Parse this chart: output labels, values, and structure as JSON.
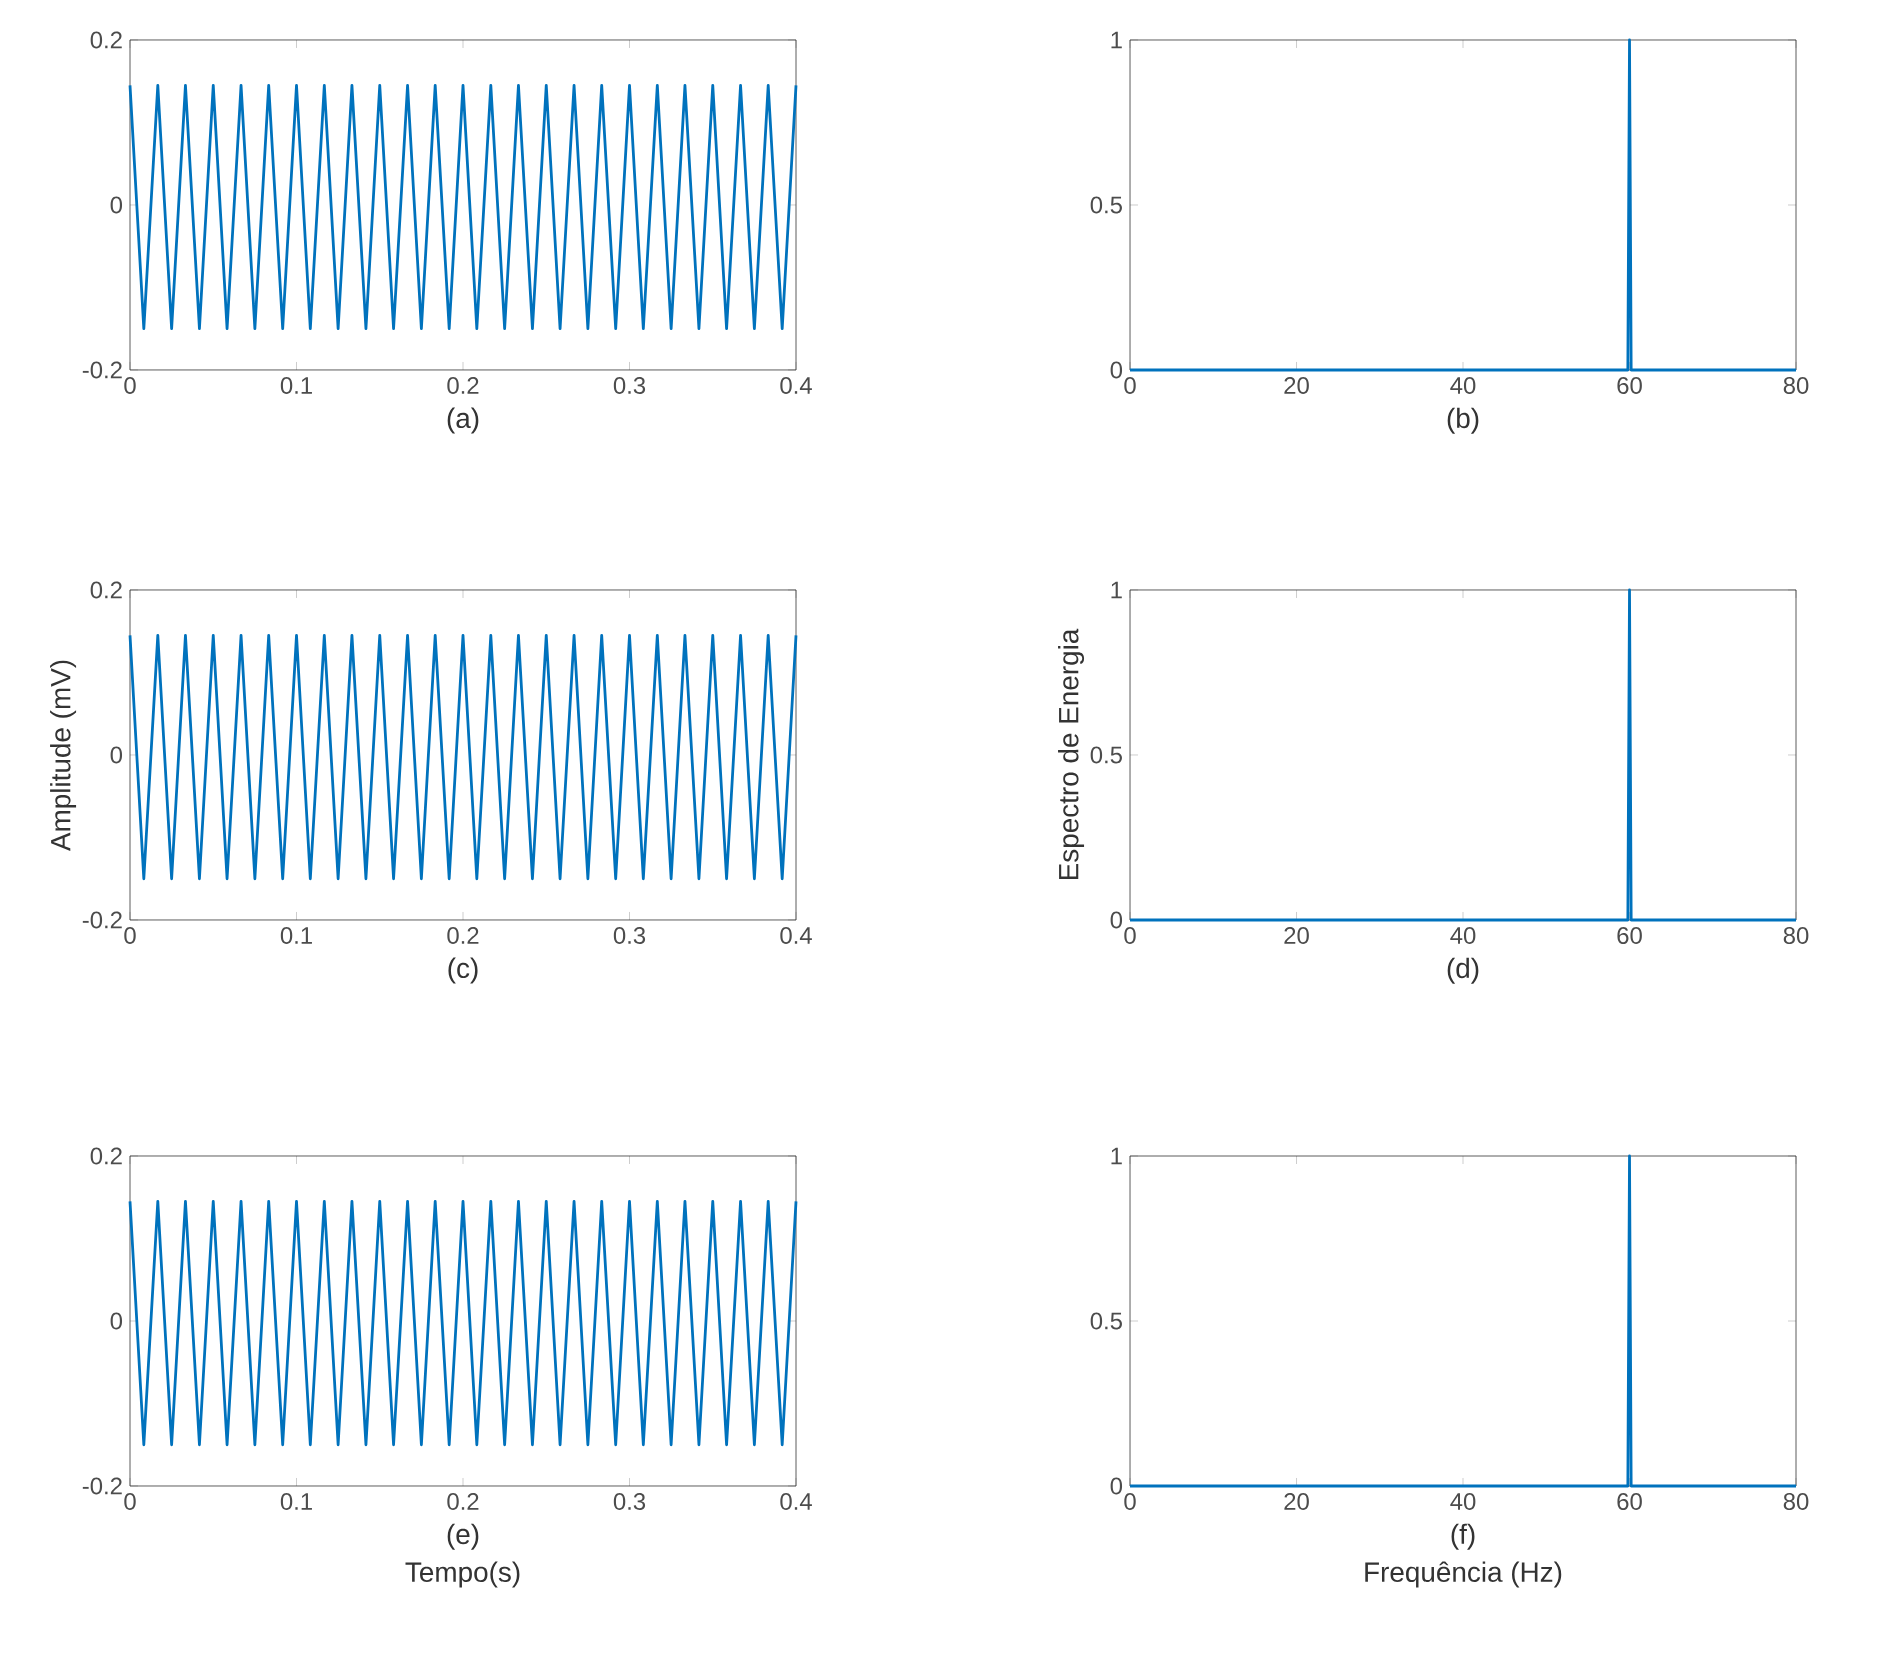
{
  "chart_data": [
    {
      "type": "line",
      "color": "#0072bd",
      "annotations": [
        "(a)"
      ],
      "xlim": [
        0,
        0.4
      ],
      "ylim": [
        -0.2,
        0.2
      ],
      "xticks": [
        0,
        0.1,
        0.2,
        0.3,
        0.4
      ],
      "yticks": [
        -0.2,
        0,
        0.2
      ],
      "x": [
        0,
        0.0083,
        0.0167,
        0.025,
        0.0333,
        0.0417,
        0.05,
        0.0583,
        0.0667,
        0.075,
        0.0833,
        0.0917,
        0.1,
        0.1083,
        0.1167,
        0.125,
        0.1333,
        0.1417,
        0.15,
        0.1583,
        0.1667,
        0.175,
        0.1833,
        0.1917,
        0.2,
        0.2083,
        0.2167,
        0.225,
        0.2333,
        0.2417,
        0.25,
        0.2583,
        0.2667,
        0.275,
        0.2833,
        0.2917,
        0.3,
        0.3083,
        0.3167,
        0.325,
        0.3333,
        0.3417,
        0.35,
        0.3583,
        0.3667,
        0.375,
        0.3833,
        0.3917,
        0.4
      ],
      "values": [
        0.145,
        -0.15,
        0.145,
        -0.15,
        0.145,
        -0.15,
        0.145,
        -0.15,
        0.145,
        -0.15,
        0.145,
        -0.15,
        0.145,
        -0.15,
        0.145,
        -0.15,
        0.145,
        -0.15,
        0.145,
        -0.15,
        0.145,
        -0.15,
        0.145,
        -0.15,
        0.145,
        -0.15,
        0.145,
        -0.15,
        0.145,
        -0.15,
        0.145,
        -0.15,
        0.145,
        -0.15,
        0.145,
        -0.15,
        0.145,
        -0.15,
        0.145,
        -0.15,
        0.145,
        -0.15,
        0.145,
        -0.15,
        0.145,
        -0.15,
        0.145,
        -0.15,
        0.145
      ]
    },
    {
      "type": "line",
      "color": "#0072bd",
      "annotations": [
        "(b)"
      ],
      "xlim": [
        0,
        80
      ],
      "ylim": [
        0,
        1
      ],
      "xticks": [
        0,
        20,
        40,
        60,
        80
      ],
      "yticks": [
        0,
        0.5,
        1
      ],
      "x": [
        0,
        59.8,
        60,
        60.2,
        80
      ],
      "values": [
        0,
        0,
        1,
        0,
        0
      ]
    },
    {
      "type": "line",
      "color": "#0072bd",
      "annotations": [
        "(c)"
      ],
      "ylabel": "Amplitude (mV)",
      "xlim": [
        0,
        0.4
      ],
      "ylim": [
        -0.2,
        0.2
      ],
      "xticks": [
        0,
        0.1,
        0.2,
        0.3,
        0.4
      ],
      "yticks": [
        -0.2,
        0,
        0.2
      ],
      "x": [
        0,
        0.0083,
        0.0167,
        0.025,
        0.0333,
        0.0417,
        0.05,
        0.0583,
        0.0667,
        0.075,
        0.0833,
        0.0917,
        0.1,
        0.1083,
        0.1167,
        0.125,
        0.1333,
        0.1417,
        0.15,
        0.1583,
        0.1667,
        0.175,
        0.1833,
        0.1917,
        0.2,
        0.2083,
        0.2167,
        0.225,
        0.2333,
        0.2417,
        0.25,
        0.2583,
        0.2667,
        0.275,
        0.2833,
        0.2917,
        0.3,
        0.3083,
        0.3167,
        0.325,
        0.3333,
        0.3417,
        0.35,
        0.3583,
        0.3667,
        0.375,
        0.3833,
        0.3917,
        0.4
      ],
      "values": [
        0.145,
        -0.15,
        0.145,
        -0.15,
        0.145,
        -0.15,
        0.145,
        -0.15,
        0.145,
        -0.15,
        0.145,
        -0.15,
        0.145,
        -0.15,
        0.145,
        -0.15,
        0.145,
        -0.15,
        0.145,
        -0.15,
        0.145,
        -0.15,
        0.145,
        -0.15,
        0.145,
        -0.15,
        0.145,
        -0.15,
        0.145,
        -0.15,
        0.145,
        -0.15,
        0.145,
        -0.15,
        0.145,
        -0.15,
        0.145,
        -0.15,
        0.145,
        -0.15,
        0.145,
        -0.15,
        0.145,
        -0.15,
        0.145,
        -0.15,
        0.145,
        -0.15,
        0.145
      ]
    },
    {
      "type": "line",
      "color": "#0072bd",
      "annotations": [
        "(d)"
      ],
      "ylabel": "Espectro de Energia",
      "xlim": [
        0,
        80
      ],
      "ylim": [
        0,
        1
      ],
      "xticks": [
        0,
        20,
        40,
        60,
        80
      ],
      "yticks": [
        0,
        0.5,
        1
      ],
      "x": [
        0,
        59.8,
        60,
        60.2,
        80
      ],
      "values": [
        0,
        0,
        1,
        0,
        0
      ]
    },
    {
      "type": "line",
      "color": "#0072bd",
      "annotations": [
        "(e)"
      ],
      "xlabel": "Tempo(s)",
      "xlim": [
        0,
        0.4
      ],
      "ylim": [
        -0.2,
        0.2
      ],
      "xticks": [
        0,
        0.1,
        0.2,
        0.3,
        0.4
      ],
      "yticks": [
        -0.2,
        0,
        0.2
      ],
      "x": [
        0,
        0.0083,
        0.0167,
        0.025,
        0.0333,
        0.0417,
        0.05,
        0.0583,
        0.0667,
        0.075,
        0.0833,
        0.0917,
        0.1,
        0.1083,
        0.1167,
        0.125,
        0.1333,
        0.1417,
        0.15,
        0.1583,
        0.1667,
        0.175,
        0.1833,
        0.1917,
        0.2,
        0.2083,
        0.2167,
        0.225,
        0.2333,
        0.2417,
        0.25,
        0.2583,
        0.2667,
        0.275,
        0.2833,
        0.2917,
        0.3,
        0.3083,
        0.3167,
        0.325,
        0.3333,
        0.3417,
        0.35,
        0.3583,
        0.3667,
        0.375,
        0.3833,
        0.3917,
        0.4
      ],
      "values": [
        0.145,
        -0.15,
        0.145,
        -0.15,
        0.145,
        -0.15,
        0.145,
        -0.15,
        0.145,
        -0.15,
        0.145,
        -0.15,
        0.145,
        -0.15,
        0.145,
        -0.15,
        0.145,
        -0.15,
        0.145,
        -0.15,
        0.145,
        -0.15,
        0.145,
        -0.15,
        0.145,
        -0.15,
        0.145,
        -0.15,
        0.145,
        -0.15,
        0.145,
        -0.15,
        0.145,
        -0.15,
        0.145,
        -0.15,
        0.145,
        -0.15,
        0.145,
        -0.15,
        0.145,
        -0.15,
        0.145,
        -0.15,
        0.145,
        -0.15,
        0.145,
        -0.15,
        0.145
      ]
    },
    {
      "type": "line",
      "color": "#0072bd",
      "annotations": [
        "(f)"
      ],
      "xlabel": "Frequência (Hz)",
      "xlim": [
        0,
        80
      ],
      "ylim": [
        0,
        1
      ],
      "xticks": [
        0,
        20,
        40,
        60,
        80
      ],
      "yticks": [
        0,
        0.5,
        1
      ],
      "x": [
        0,
        59.8,
        60,
        60.2,
        80
      ],
      "values": [
        0,
        0,
        1,
        0,
        0
      ]
    }
  ]
}
